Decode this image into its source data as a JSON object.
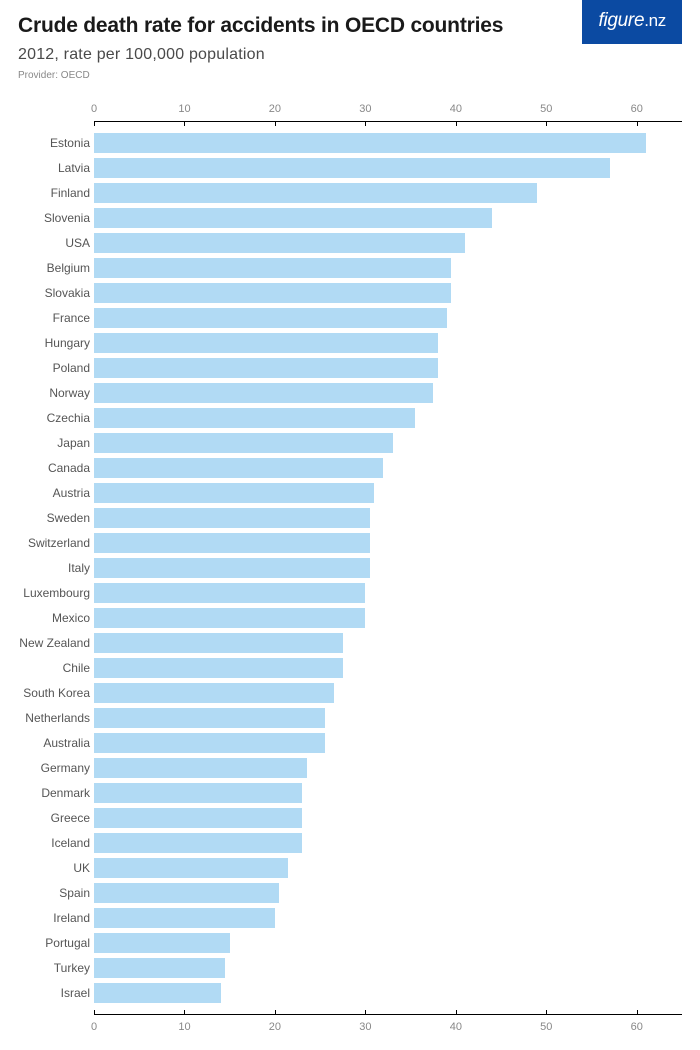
{
  "header": {
    "title": "Crude death rate for accidents in OECD countries",
    "subtitle": "2012, rate per 100,000 population",
    "provider": "Provider: OECD",
    "logo_text": "figure",
    "logo_suffix": ".nz"
  },
  "chart": {
    "type": "bar-horizontal",
    "bar_color": "#b1daf4",
    "background_color": "#ffffff",
    "axis_line_color": "#000000",
    "tick_label_color": "#888888",
    "ylabel_color": "#555555",
    "tick_label_fontsize": 11,
    "ylabel_fontsize": 12,
    "title_fontsize": 21,
    "subtitle_fontsize": 16,
    "xlim": [
      0,
      65
    ],
    "xticks": [
      0,
      10,
      20,
      30,
      40,
      50,
      60
    ],
    "bar_gap_ratio": 0.22,
    "categories": [
      "Estonia",
      "Latvia",
      "Finland",
      "Slovenia",
      "USA",
      "Belgium",
      "Slovakia",
      "France",
      "Hungary",
      "Poland",
      "Norway",
      "Czechia",
      "Japan",
      "Canada",
      "Austria",
      "Sweden",
      "Switzerland",
      "Italy",
      "Luxembourg",
      "Mexico",
      "New Zealand",
      "Chile",
      "South Korea",
      "Netherlands",
      "Australia",
      "Germany",
      "Denmark",
      "Greece",
      "Iceland",
      "UK",
      "Spain",
      "Ireland",
      "Portugal",
      "Turkey",
      "Israel"
    ],
    "values": [
      61,
      57,
      49,
      44,
      41,
      39.5,
      39.5,
      39,
      38,
      38,
      37.5,
      35.5,
      33,
      32,
      31,
      30.5,
      30.5,
      30.5,
      30,
      30,
      27.5,
      27.5,
      26.5,
      25.5,
      25.5,
      23.5,
      23,
      23,
      23,
      21.5,
      20.5,
      20,
      15,
      14.5,
      14
    ]
  }
}
